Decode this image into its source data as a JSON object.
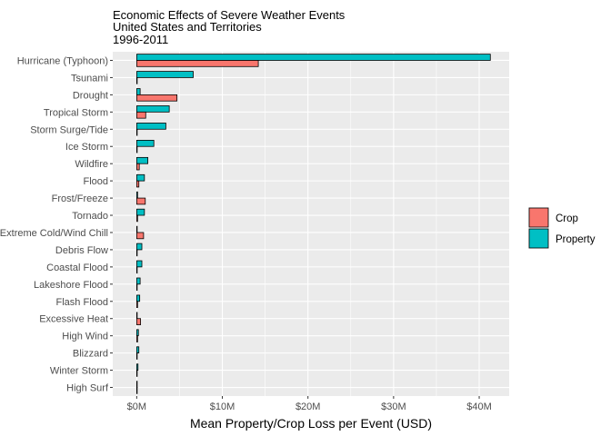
{
  "chart_data": {
    "type": "bar",
    "orientation": "horizontal",
    "title": [
      "Economic Effects of Severe Weather Events",
      "United States and Territories",
      "1996-2011"
    ],
    "xlabel": "Mean Property/Crop Loss per Event (USD)",
    "ylabel": "",
    "xlim": [
      -2.8,
      43.5
    ],
    "x_ticks": [
      0,
      10,
      20,
      30,
      40
    ],
    "x_tick_labels": [
      "$0M",
      "$10M",
      "$20M",
      "$30M",
      "$40M"
    ],
    "grid": true,
    "legend_position": "right",
    "categories": [
      "Hurricane (Typhoon)",
      "Tsunami",
      "Drought",
      "Tropical Storm",
      "Storm Surge/Tide",
      "Ice Storm",
      "Wildfire",
      "Flood",
      "Frost/Freeze",
      "Tornado",
      "Extreme Cold/Wind Chill",
      "Debris Flow",
      "Coastal Flood",
      "Lakeshore Flood",
      "Flash Flood",
      "Excessive Heat",
      "High Wind",
      "Blizzard",
      "Winter Storm",
      "High Surf"
    ],
    "series": [
      {
        "name": "Crop",
        "color": "#F8766D",
        "values": [
          14.2,
          0.02,
          4.7,
          1.05,
          0.0,
          0.05,
          0.3,
          0.25,
          1.0,
          0.1,
          0.8,
          0.0,
          0.0,
          0.0,
          0.1,
          0.45,
          0.1,
          0.0,
          0.05,
          0.0
        ]
      },
      {
        "name": "Property",
        "color": "#00BFC4",
        "values": [
          41.3,
          6.6,
          0.4,
          3.8,
          3.4,
          2.0,
          1.3,
          0.9,
          0.1,
          0.9,
          0.05,
          0.6,
          0.6,
          0.4,
          0.35,
          0.05,
          0.2,
          0.25,
          0.15,
          0.05
        ]
      }
    ]
  }
}
